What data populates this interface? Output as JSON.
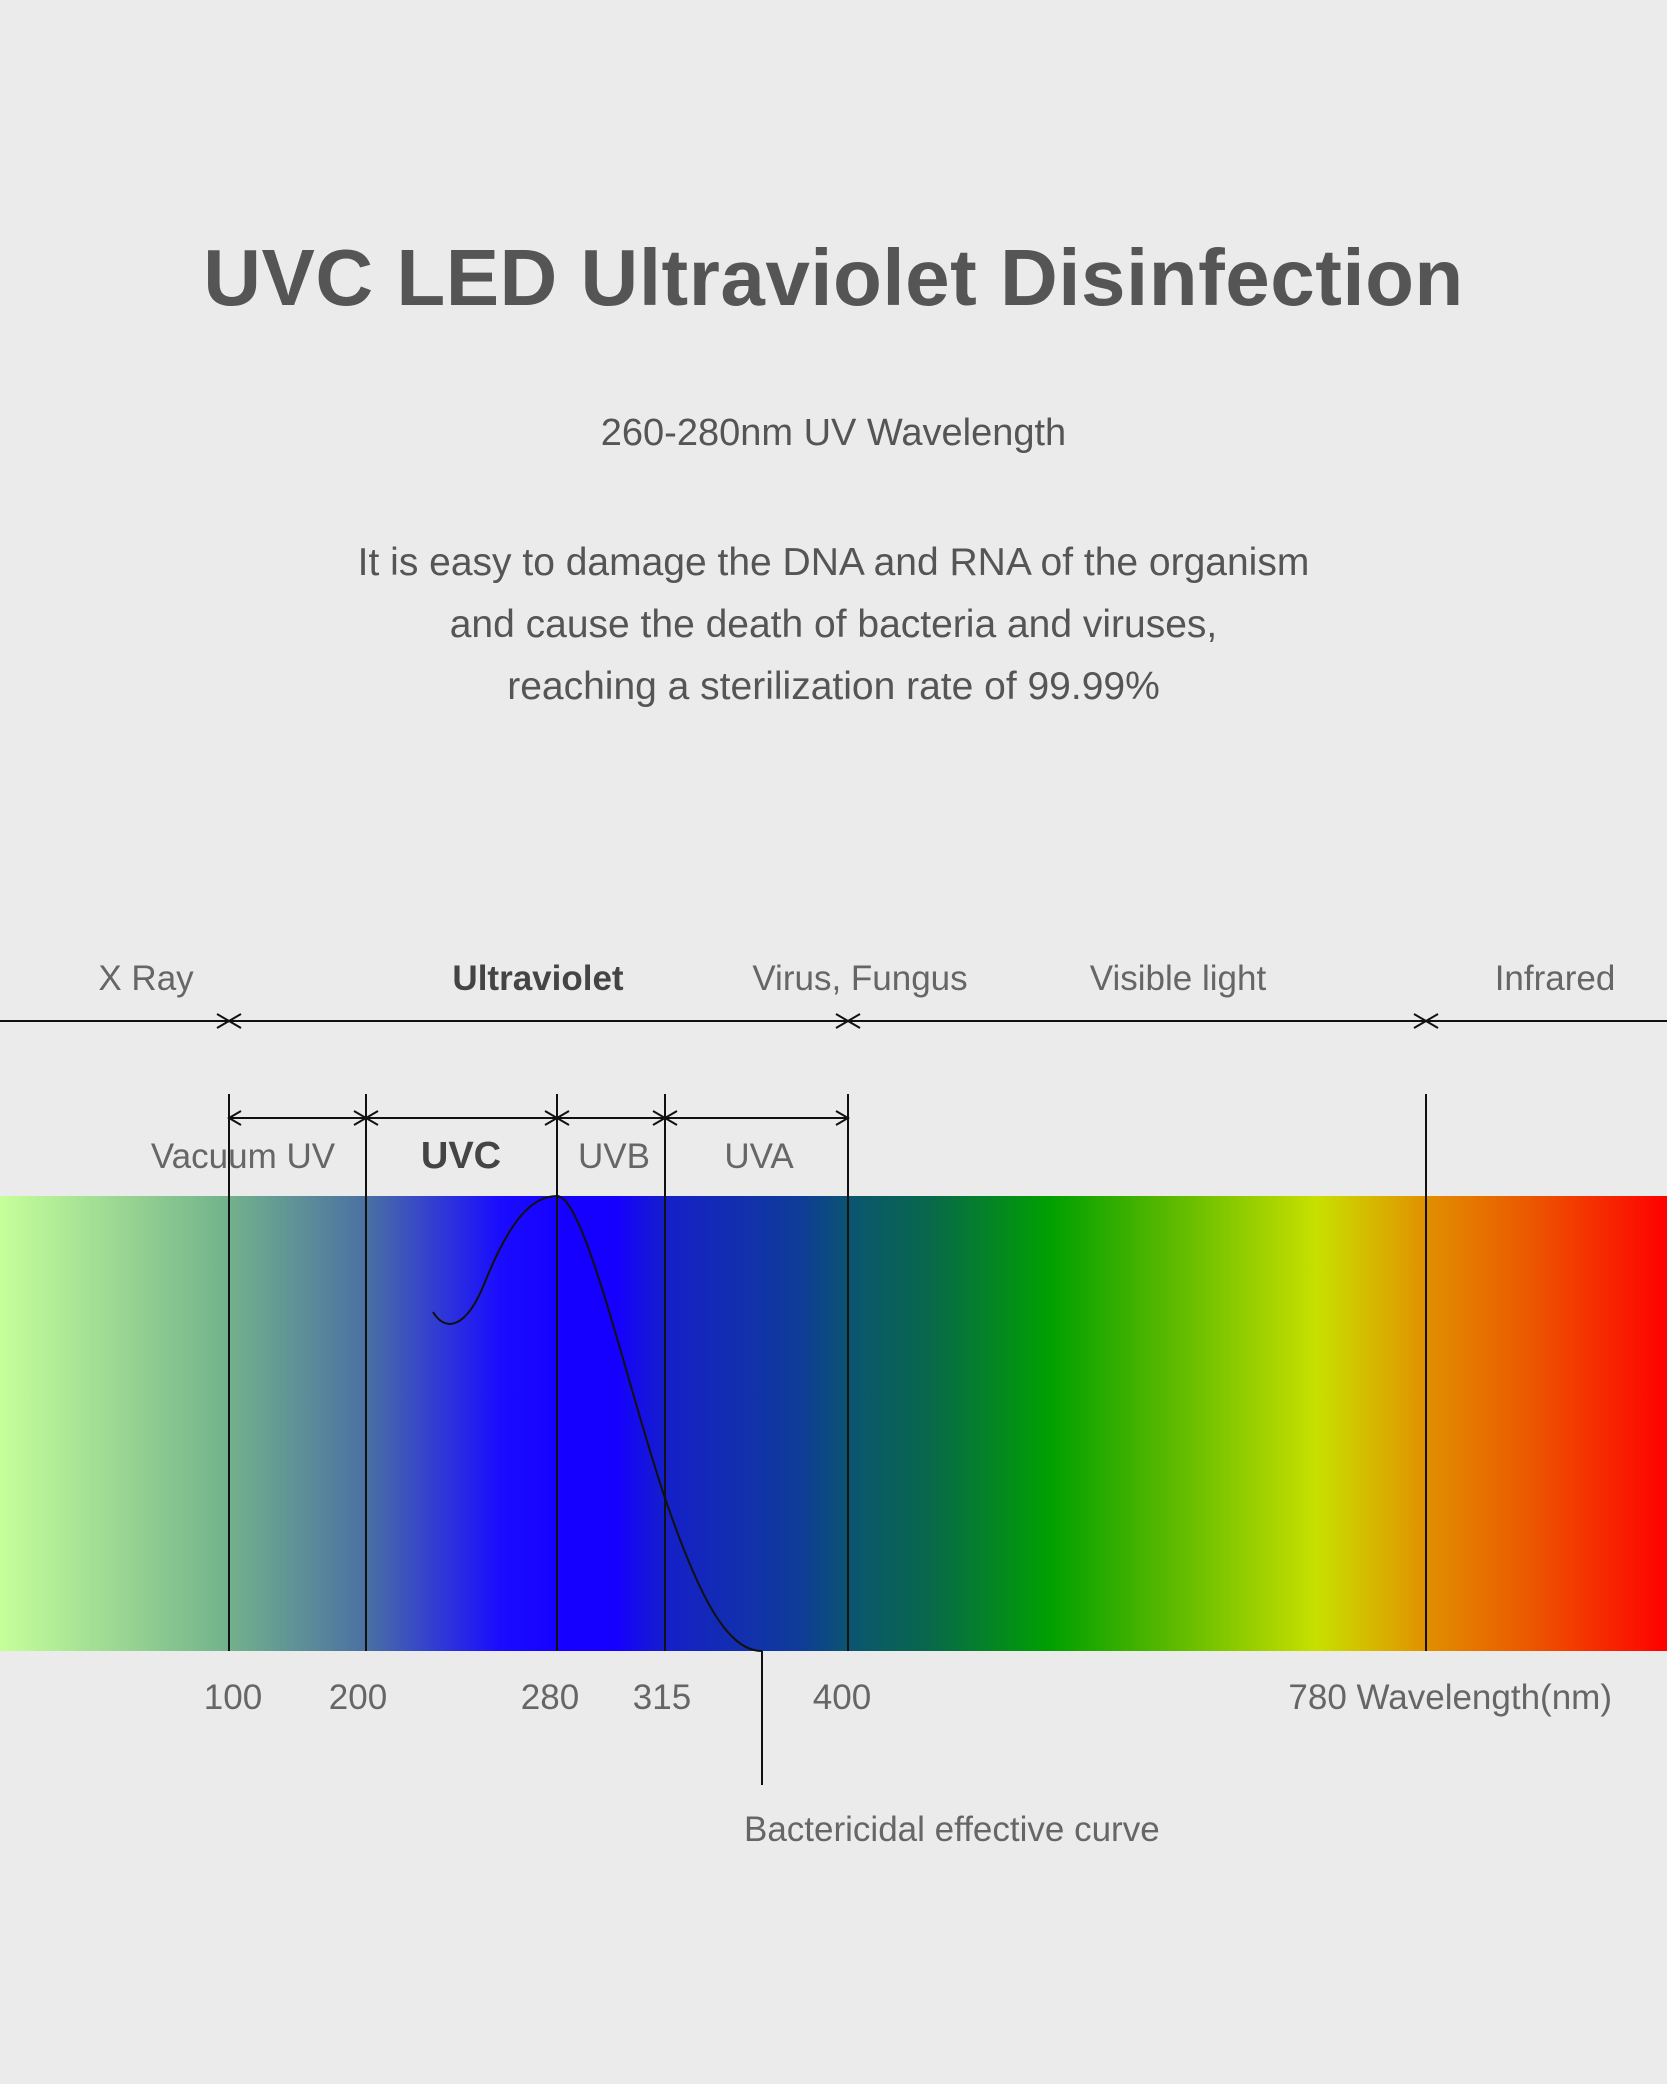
{
  "header": {
    "title": "UVC LED Ultraviolet Disinfection",
    "subtitle": "260-280nm UV Wavelength",
    "description": [
      "It is easy to damage the DNA and RNA of the organism",
      "and cause the death of bacteria and viruses,",
      "reaching a sterilization rate of 99.99%"
    ]
  },
  "spectrum": {
    "regions": [
      "X Ray",
      "Ultraviolet",
      "Virus, Fungus",
      "Visible light",
      "Infrared"
    ],
    "uv_bands": [
      "Vacuum UV",
      "UVC",
      "UVB",
      "UVA"
    ],
    "ticks": [
      "100",
      "200",
      "280",
      "315",
      "400",
      "780 Wavelength(nm)"
    ],
    "curve_label": "Bactericidal effective curve"
  },
  "colors": {
    "background": "#ebebeb",
    "text": "#555555",
    "uv_peak": "#1500ff",
    "infrared": "#ff0000"
  }
}
